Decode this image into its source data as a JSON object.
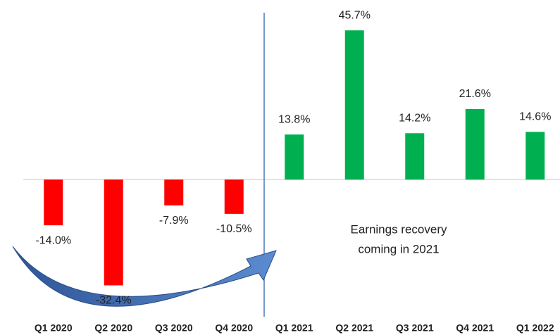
{
  "chart_data": {
    "type": "bar",
    "categories": [
      "Q1 2020",
      "Q2 2020",
      "Q3 2020",
      "Q4 2020",
      "Q1 2021",
      "Q2 2021",
      "Q3 2021",
      "Q4 2021",
      "Q1 2022"
    ],
    "values": [
      -14.0,
      -32.4,
      -7.9,
      -10.5,
      13.8,
      45.7,
      14.2,
      21.6,
      14.6
    ],
    "value_labels": [
      "-14.0%",
      "-32.4%",
      "-7.9%",
      "-10.5%",
      "13.8%",
      "45.7%",
      "14.2%",
      "21.6%",
      "14.6%"
    ],
    "colors": [
      "#ff0000",
      "#ff0000",
      "#ff0000",
      "#ff0000",
      "#00b050",
      "#00b050",
      "#00b050",
      "#00b050",
      "#00b050"
    ],
    "ylim": [
      -42,
      55
    ],
    "annotation": [
      "Earnings recovery",
      "coming in 2021"
    ]
  }
}
